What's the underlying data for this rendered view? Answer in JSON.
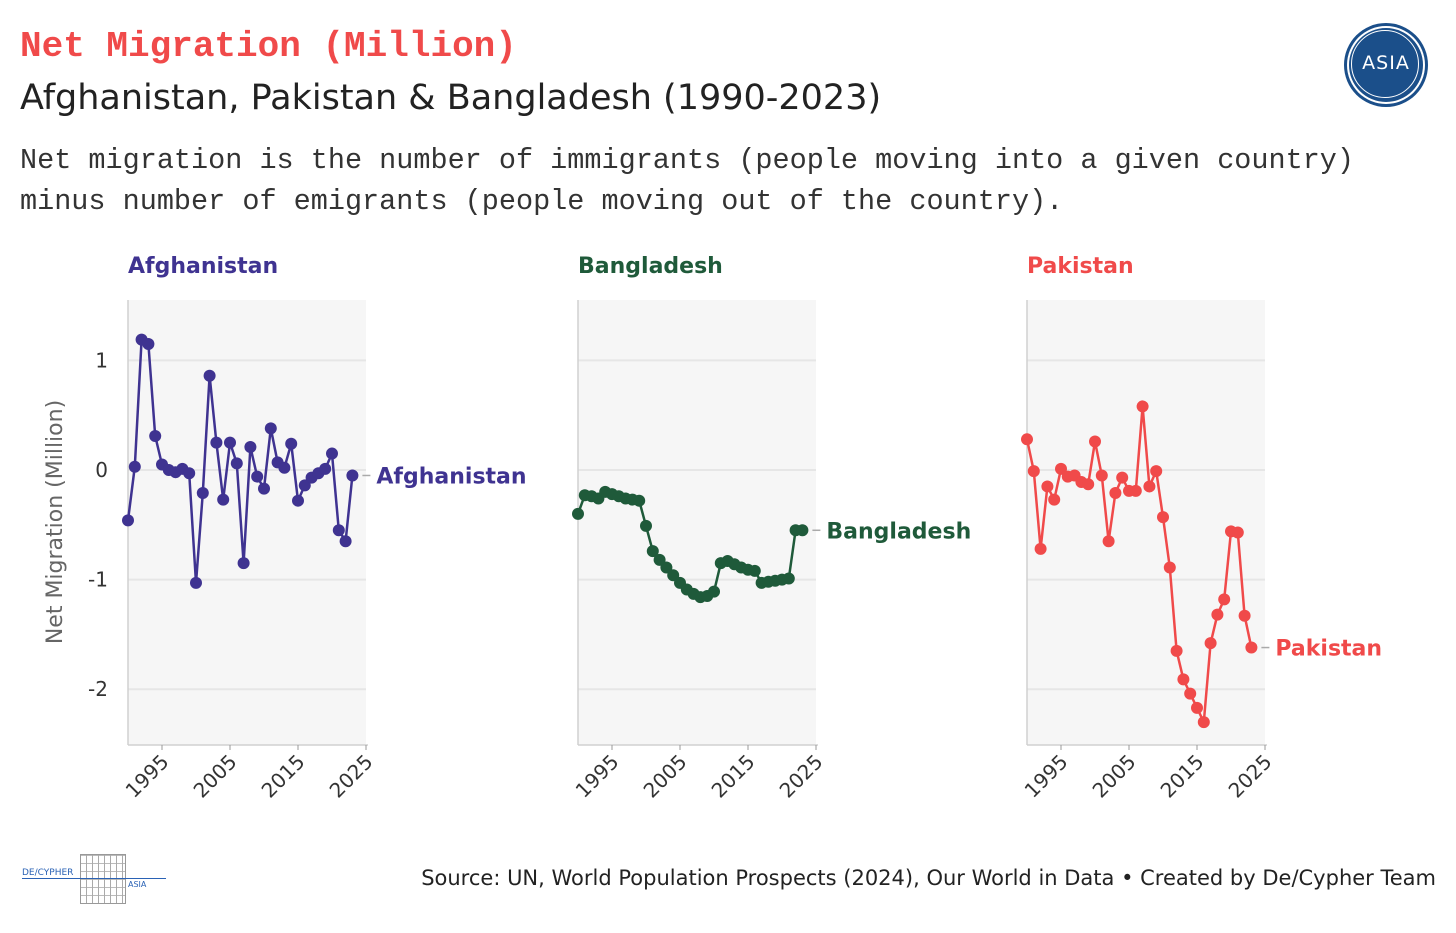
{
  "header": {
    "title": "Net Migration (Million)",
    "subtitle": "Afghanistan, Pakistan & Bangladesh (1990-2023)",
    "description": "Net migration is the number of immigrants (people moving into a given country) minus number of emigrants (people moving out of the country)."
  },
  "logo": {
    "text": "ASIA",
    "color": "#1b4f8a"
  },
  "brand": {
    "left_text": "DE/CYPHER",
    "right_text": "ASIA"
  },
  "source": "Source: UN, World Population Prospects (2024), Our World in Data • Created by De/Cypher Team",
  "chart_data": {
    "type": "line",
    "ylabel": "Net Migration (Million)",
    "xlabel": "",
    "xlim": [
      1990,
      2025
    ],
    "ylim": [
      -2.5,
      1.55
    ],
    "yticks": [
      1,
      0,
      -1,
      -2
    ],
    "ytick_labels": [
      "1",
      "0",
      "-1",
      "-2"
    ],
    "xticks": [
      1995,
      2005,
      2015,
      2025
    ],
    "xtick_labels": [
      "1995",
      "2005",
      "2015",
      "2025"
    ],
    "grid": true,
    "years": [
      1990,
      1991,
      1992,
      1993,
      1994,
      1995,
      1996,
      1997,
      1998,
      1999,
      2000,
      2001,
      2002,
      2003,
      2004,
      2005,
      2006,
      2007,
      2008,
      2009,
      2010,
      2011,
      2012,
      2013,
      2014,
      2015,
      2016,
      2017,
      2018,
      2019,
      2020,
      2021,
      2022,
      2023
    ],
    "series": [
      {
        "name": "Afghanistan",
        "color": "#3f3391",
        "values": [
          -0.46,
          0.03,
          1.19,
          1.15,
          0.31,
          0.05,
          0.0,
          -0.02,
          0.01,
          -0.03,
          -1.03,
          -0.21,
          0.86,
          0.25,
          -0.27,
          0.25,
          0.06,
          -0.85,
          0.21,
          -0.06,
          -0.17,
          0.38,
          0.07,
          0.02,
          0.24,
          -0.28,
          -0.14,
          -0.07,
          -0.03,
          0.01,
          0.15,
          -0.55,
          -0.65,
          -0.05
        ]
      },
      {
        "name": "Bangladesh",
        "color": "#1f5a3a",
        "values": [
          -0.4,
          -0.23,
          -0.24,
          -0.26,
          -0.2,
          -0.22,
          -0.24,
          -0.26,
          -0.27,
          -0.28,
          -0.51,
          -0.74,
          -0.82,
          -0.89,
          -0.96,
          -1.03,
          -1.09,
          -1.13,
          -1.16,
          -1.15,
          -1.11,
          -0.85,
          -0.83,
          -0.86,
          -0.89,
          -0.91,
          -0.92,
          -1.03,
          -1.02,
          -1.01,
          -1.0,
          -0.99,
          -0.55,
          -0.55
        ]
      },
      {
        "name": "Pakistan",
        "color": "#f04a4a",
        "values": [
          0.28,
          -0.01,
          -0.72,
          -0.15,
          -0.27,
          0.01,
          -0.06,
          -0.05,
          -0.11,
          -0.13,
          0.26,
          -0.05,
          -0.65,
          -0.21,
          -0.07,
          -0.19,
          -0.19,
          0.58,
          -0.15,
          -0.01,
          -0.43,
          -0.89,
          -1.65,
          -1.91,
          -2.04,
          -2.17,
          -2.3,
          -1.58,
          -1.32,
          -1.18,
          -0.56,
          -0.57,
          -1.33,
          -1.62
        ]
      }
    ]
  }
}
